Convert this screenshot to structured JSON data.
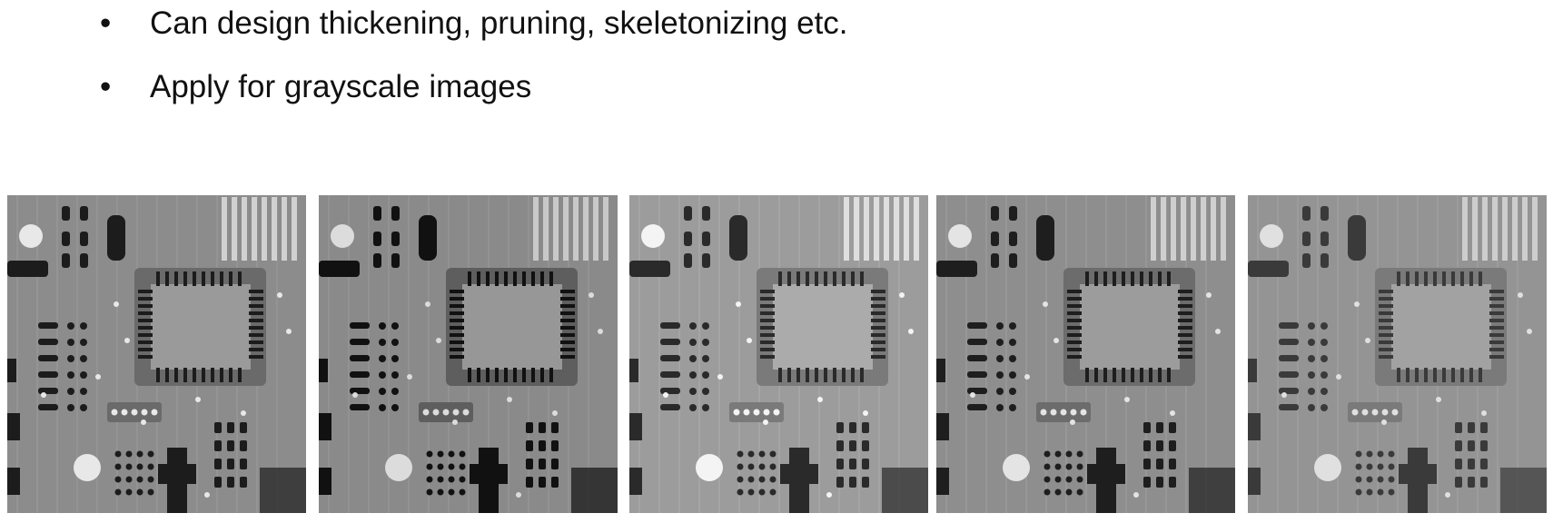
{
  "bullets": [
    {
      "symbol": "•",
      "text": "Can design thickening, pruning, skeletonizing etc."
    },
    {
      "symbol": "•",
      "text": "Apply for grayscale images"
    }
  ],
  "panels": [
    {
      "name": "xray-circuit-board-image-1",
      "tone": "original"
    },
    {
      "name": "xray-circuit-board-image-2",
      "tone": "darker"
    },
    {
      "name": "xray-circuit-board-image-3",
      "tone": "lighter"
    },
    {
      "name": "xray-circuit-board-image-4",
      "tone": "mid"
    },
    {
      "name": "xray-circuit-board-image-5",
      "tone": "smoothed"
    }
  ]
}
